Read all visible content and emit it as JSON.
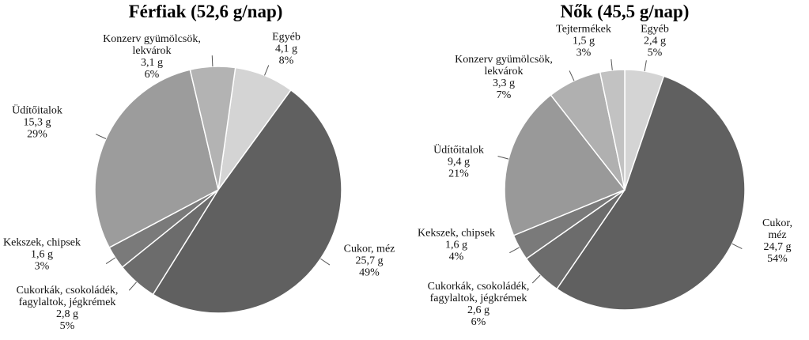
{
  "chart_data": [
    {
      "type": "pie",
      "title": "Férfiak (52,6 g/nap)",
      "categories": [
        "Egyéb",
        "Cukor, méz",
        "Cukorkák, csokoládék,\nfagylaltok, jégkrémek",
        "Kekszek, chipsek",
        "Üdítőitalok",
        "Konzerv gyümölcsök,\nlekvárok"
      ],
      "values": [
        4.1,
        25.7,
        2.8,
        1.6,
        15.3,
        3.1
      ],
      "value_labels": [
        "4,1 g",
        "25,7 g",
        "2,8 g",
        "1,6 g",
        "15,3 g",
        "3,1 g"
      ],
      "percents": [
        8,
        49,
        5,
        3,
        29,
        6
      ],
      "percent_labels": [
        "8%",
        "49%",
        "5%",
        "3%",
        "29%",
        "6%"
      ],
      "colors": [
        "#d4d4d4",
        "#606060",
        "#6c6c6c",
        "#7a7a7a",
        "#9c9c9c",
        "#b3b3b3"
      ]
    },
    {
      "type": "pie",
      "title": "Nők (45,5 g/nap)",
      "categories": [
        "Egyéb",
        "Cukor, méz",
        "Cukorkák, csokoládék,\nfagylaltok, jégkrémek",
        "Kekszek, chipsek",
        "Üdítőitalok",
        "Konzerv gyümölcsök,\nlekvárok",
        "Tejtermékek"
      ],
      "values": [
        2.4,
        24.7,
        2.6,
        1.6,
        9.4,
        3.3,
        1.5
      ],
      "value_labels": [
        "2,4 g",
        "24,7 g",
        "2,6 g",
        "1,6 g",
        "9,4 g",
        "3,3 g",
        "1,5 g"
      ],
      "percents": [
        5,
        54,
        6,
        4,
        21,
        7,
        3
      ],
      "percent_labels": [
        "5%",
        "54%",
        "6%",
        "4%",
        "21%",
        "7%",
        "3%"
      ],
      "colors": [
        "#d4d4d4",
        "#606060",
        "#6c6c6c",
        "#7a7a7a",
        "#999999",
        "#b0b0b0",
        "#c2c2c2"
      ]
    }
  ]
}
